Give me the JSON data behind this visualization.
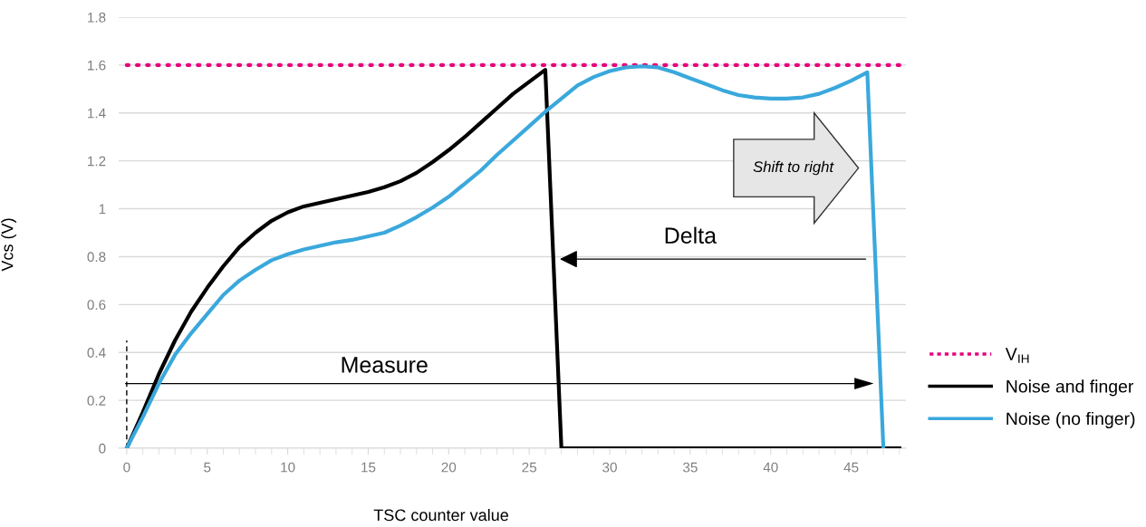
{
  "chart_data": {
    "type": "line",
    "xlabel": "TSC counter value",
    "ylabel": "Vcs (V)",
    "xlim": [
      -0.5,
      48.4
    ],
    "xticks": [
      0,
      5,
      10,
      15,
      20,
      25,
      30,
      35,
      40,
      45
    ],
    "ylim": [
      0,
      1.8
    ],
    "yticks": [
      0,
      0.2,
      0.4,
      0.6,
      0.8,
      1,
      1.2,
      1.4,
      1.6,
      1.8
    ],
    "grid": "y",
    "legend": "right",
    "annotations": [
      "Measure",
      "Delta",
      "Shift to right"
    ],
    "series": [
      {
        "name": "V$_{IH}$",
        "color": "#e6007e",
        "line_style": "dotted",
        "x": [
          0,
          48
        ],
        "values": [
          1.6,
          1.6
        ]
      },
      {
        "name": "Noise and finger",
        "color": "#000000",
        "x": [
          0,
          1,
          2,
          3,
          4,
          5,
          6,
          7,
          8,
          9,
          10,
          11,
          12,
          13,
          14,
          15,
          16,
          17,
          18,
          19,
          20,
          21,
          22,
          23,
          24,
          25,
          26,
          27,
          48
        ],
        "values": [
          0,
          0.15,
          0.31,
          0.45,
          0.57,
          0.67,
          0.76,
          0.84,
          0.9,
          0.95,
          0.985,
          1.01,
          1.025,
          1.04,
          1.055,
          1.07,
          1.09,
          1.115,
          1.15,
          1.195,
          1.245,
          1.3,
          1.36,
          1.42,
          1.48,
          1.53,
          1.58,
          0,
          0
        ]
      },
      {
        "name": "Noise (no finger)",
        "color": "#3aa8dc",
        "x": [
          0,
          1,
          2,
          3,
          4,
          5,
          6,
          7,
          8,
          9,
          10,
          11,
          12,
          13,
          14,
          15,
          16,
          17,
          18,
          19,
          20,
          21,
          22,
          23,
          24,
          25,
          26,
          27,
          28,
          29,
          30,
          31,
          32,
          33,
          34,
          35,
          36,
          37,
          38,
          39,
          40,
          41,
          42,
          43,
          44,
          45,
          46,
          47
        ],
        "values": [
          0,
          0.13,
          0.27,
          0.39,
          0.48,
          0.56,
          0.64,
          0.7,
          0.745,
          0.785,
          0.81,
          0.83,
          0.845,
          0.86,
          0.87,
          0.885,
          0.9,
          0.93,
          0.965,
          1.005,
          1.05,
          1.105,
          1.16,
          1.225,
          1.285,
          1.345,
          1.405,
          1.46,
          1.515,
          1.55,
          1.575,
          1.59,
          1.595,
          1.59,
          1.57,
          1.545,
          1.52,
          1.495,
          1.475,
          1.465,
          1.46,
          1.46,
          1.465,
          1.48,
          1.505,
          1.535,
          1.57,
          0
        ]
      }
    ]
  }
}
